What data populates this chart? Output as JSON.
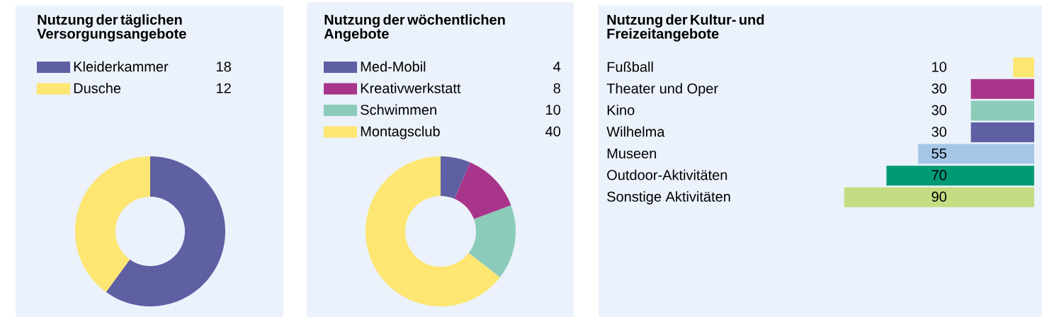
{
  "chart_data": [
    {
      "type": "donut",
      "title": "Nutzung der täglichen Versorgungsangebote",
      "categories": [
        "Kleiderkammer",
        "Dusche"
      ],
      "values": [
        18,
        12
      ],
      "colors": [
        "#5f5fa3",
        "#fde672"
      ],
      "legend": "top",
      "data_labels": true
    },
    {
      "type": "donut",
      "title": "Nutzung der wöchentlichen Angebote",
      "categories": [
        "Med-Mobil",
        "Kreativwerkstatt",
        "Schwimmen",
        "Montagsclub"
      ],
      "values": [
        4,
        8,
        10,
        40
      ],
      "colors": [
        "#5f5fa3",
        "#a9358b",
        "#8ccbba",
        "#fde672"
      ],
      "legend": "top",
      "data_labels": true
    },
    {
      "type": "bar",
      "orientation": "horizontal",
      "title": "Nutzung der Kultur- und Freizeitangebote",
      "categories": [
        "Fußball",
        "Theater und Oper",
        "Kino",
        "Wilhelma",
        "Museen",
        "Outdoor-Aktivitäten",
        "Sonstige Aktivitäten"
      ],
      "values": [
        10,
        30,
        30,
        30,
        55,
        70,
        90
      ],
      "colors": [
        "#fde672",
        "#a9358b",
        "#8ccbba",
        "#5f5fa3",
        "#a6c6e8",
        "#009a76",
        "#c4dc82"
      ],
      "data_labels": true
    }
  ]
}
